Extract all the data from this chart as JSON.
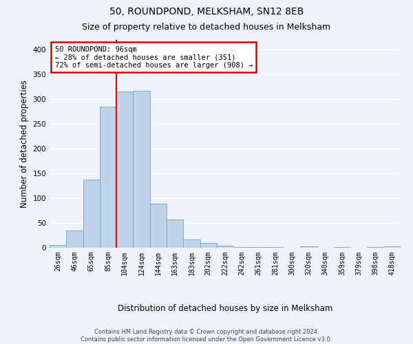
{
  "title": "50, ROUNDPOND, MELKSHAM, SN12 8EB",
  "subtitle": "Size of property relative to detached houses in Melksham",
  "xlabel": "Distribution of detached houses by size in Melksham",
  "ylabel": "Number of detached properties",
  "footer_line1": "Contains HM Land Registry data © Crown copyright and database right 2024.",
  "footer_line2": "Contains public sector information licensed under the Open Government Licence v3.0.",
  "categories": [
    "26sqm",
    "46sqm",
    "65sqm",
    "85sqm",
    "104sqm",
    "124sqm",
    "144sqm",
    "163sqm",
    "183sqm",
    "202sqm",
    "222sqm",
    "242sqm",
    "261sqm",
    "281sqm",
    "300sqm",
    "320sqm",
    "340sqm",
    "359sqm",
    "379sqm",
    "398sqm",
    "418sqm"
  ],
  "values": [
    6,
    35,
    137,
    284,
    315,
    317,
    89,
    57,
    17,
    10,
    4,
    2,
    1,
    1,
    0,
    3,
    0,
    2,
    0,
    2,
    3
  ],
  "bar_color": "#bdd4e8",
  "bar_edge_color": "#6699cc",
  "annotation_text": "50 ROUNDPOND: 96sqm\n← 28% of detached houses are smaller (351)\n72% of semi-detached houses are larger (908) →",
  "annotation_box_color": "#ffffff",
  "annotation_box_edge": "#cc0000",
  "marker_line_color": "#cc0000",
  "ylim": [
    0,
    420
  ],
  "yticks": [
    0,
    50,
    100,
    150,
    200,
    250,
    300,
    350,
    400
  ],
  "background_color": "#eef2f9",
  "grid_color": "#ffffff",
  "title_fontsize": 10,
  "subtitle_fontsize": 9,
  "axis_label_fontsize": 8.5,
  "tick_fontsize": 7
}
